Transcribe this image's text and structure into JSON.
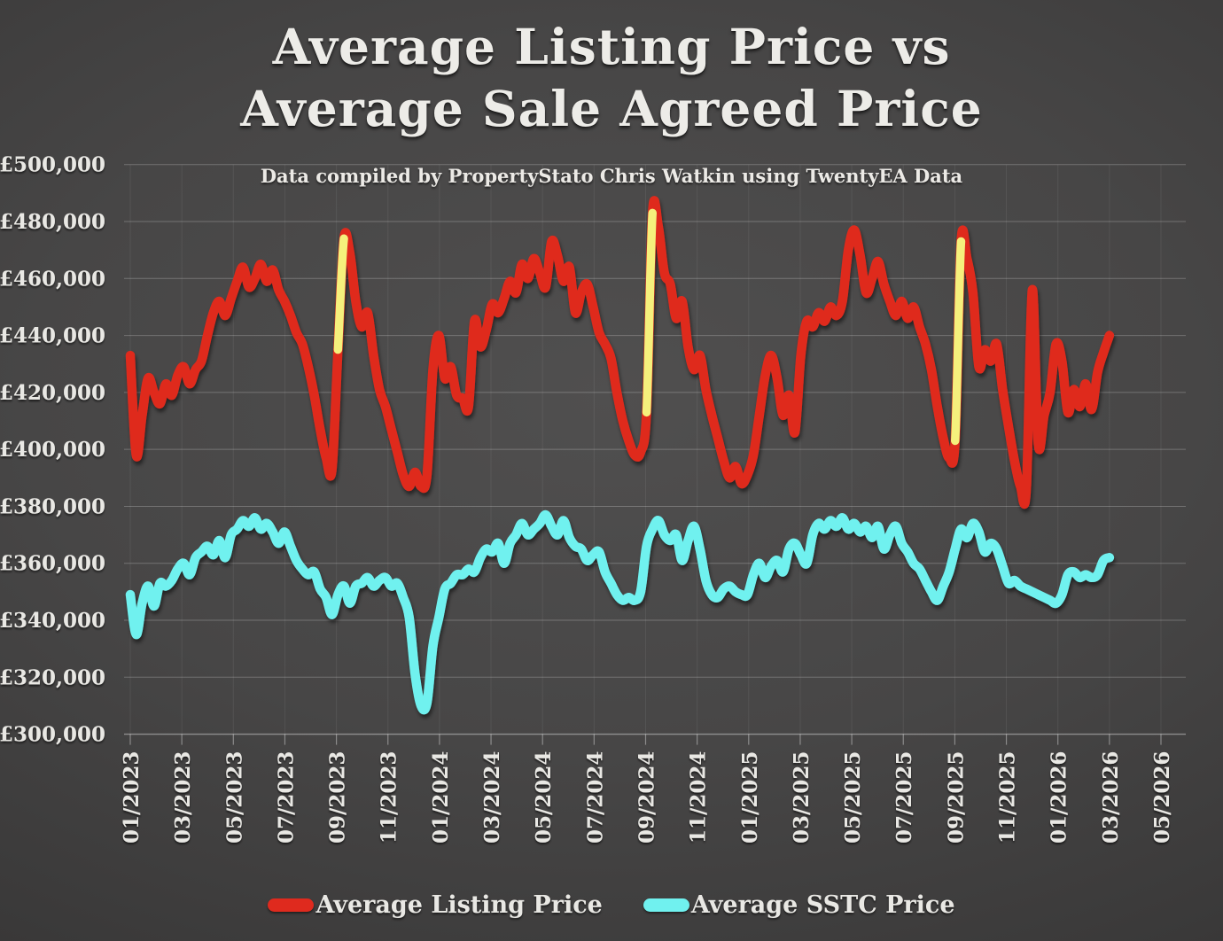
{
  "title": {
    "line1": "Average Listing Price vs",
    "line2": "Average Sale Agreed Price"
  },
  "subtitle": "Data compiled by PropertyStato Chris Watkin using TwentyEA Data",
  "legend": [
    {
      "label": "Average Listing Price",
      "color": "#df2a1e"
    },
    {
      "label": "Average SSTC Price",
      "color": "#70f1ef"
    }
  ],
  "colors": {
    "background_center": "#4f4e4e",
    "background_edge": "#2c2b2b",
    "text": "#e9e8e4",
    "gridline": "#6f6f6f",
    "listing_line": "#df2a1e",
    "sstc_line": "#70f1ef",
    "highlight_segment": "#f5f07c"
  },
  "chart_data": {
    "type": "line",
    "title": "Average Listing Price vs Average Sale Agreed Price",
    "subtitle": "Data compiled by PropertyStato Chris Watkin using TwentyEA Data",
    "x_frequency": "weekly",
    "x_start": "01/2023",
    "x_end": "03/2026",
    "x_tick_labels": [
      "01/2023",
      "03/2023",
      "05/2023",
      "07/2023",
      "09/2023",
      "11/2023",
      "01/2024",
      "03/2024",
      "05/2024",
      "07/2024",
      "09/2024",
      "11/2024",
      "01/2025",
      "03/2025",
      "05/2025",
      "07/2025",
      "09/2025",
      "11/2025",
      "01/2026",
      "03/2026",
      "05/2026"
    ],
    "y_tick_labels": [
      "£500,000",
      "£480,000",
      "£460,000",
      "£440,000",
      "£420,000",
      "£400,000",
      "£380,000",
      "£360,000",
      "£340,000",
      "£320,000",
      "£300,000"
    ],
    "ylim": [
      300000,
      500000
    ],
    "currency": "GBP",
    "grid": true,
    "legend_position": "bottom",
    "series": [
      {
        "name": "Average Listing Price",
        "color": "#df2a1e",
        "values": [
          433000,
          398000,
          412000,
          425000,
          420000,
          416000,
          423000,
          419000,
          426000,
          429000,
          423000,
          428000,
          431000,
          440000,
          448000,
          452000,
          447000,
          453000,
          459000,
          464000,
          457000,
          460000,
          465000,
          459000,
          463000,
          456000,
          452000,
          447000,
          441000,
          437000,
          429000,
          419000,
          407000,
          397000,
          393000,
          435000,
          474000,
          469000,
          452000,
          443000,
          448000,
          433000,
          421000,
          415000,
          407000,
          399000,
          391000,
          387000,
          392000,
          387000,
          391000,
          428000,
          440000,
          425000,
          429000,
          419000,
          418000,
          415000,
          445000,
          436000,
          442000,
          451000,
          448000,
          453000,
          459000,
          455000,
          465000,
          460000,
          467000,
          462000,
          457000,
          473000,
          468000,
          459000,
          464000,
          448000,
          455000,
          458000,
          450000,
          441000,
          437000,
          432000,
          420000,
          410000,
          403000,
          398000,
          399000,
          413000,
          483000,
          478000,
          462000,
          458000,
          446000,
          452000,
          436000,
          428000,
          433000,
          421000,
          412000,
          404000,
          396000,
          390000,
          394000,
          388000,
          391000,
          398000,
          412000,
          426000,
          433000,
          425000,
          412000,
          419000,
          406000,
          433000,
          445000,
          443000,
          448000,
          445000,
          450000,
          447000,
          452000,
          470000,
          477000,
          468000,
          455000,
          460000,
          466000,
          458000,
          452000,
          447000,
          452000,
          446000,
          450000,
          443000,
          437000,
          428000,
          415000,
          404000,
          397000,
          403000,
          473000,
          467000,
          455000,
          429000,
          435000,
          431000,
          437000,
          421000,
          408000,
          396000,
          387000,
          386000,
          456000,
          402000,
          412000,
          420000,
          437000,
          431000,
          413000,
          421000,
          415000,
          423000,
          414000,
          427000,
          434000,
          440000
        ]
      },
      {
        "name": "Average SSTC Price",
        "color": "#70f1ef",
        "values": [
          349000,
          335000,
          346000,
          352000,
          345000,
          353000,
          352000,
          354000,
          358000,
          360000,
          356000,
          362000,
          364000,
          366000,
          363000,
          368000,
          362000,
          370000,
          372000,
          375000,
          373000,
          376000,
          372000,
          374000,
          371000,
          367000,
          371000,
          366000,
          361000,
          358000,
          356000,
          357000,
          351000,
          348000,
          342000,
          349000,
          352000,
          346000,
          352000,
          353000,
          355000,
          352000,
          354000,
          355000,
          352000,
          353000,
          348000,
          341000,
          321000,
          310000,
          311000,
          331000,
          341000,
          351000,
          353000,
          356000,
          356000,
          358000,
          357000,
          362000,
          365000,
          364000,
          367000,
          360000,
          367000,
          370000,
          374000,
          370000,
          372000,
          374000,
          377000,
          373000,
          370000,
          375000,
          369000,
          366000,
          365000,
          361000,
          363000,
          364000,
          357000,
          353000,
          349000,
          347000,
          348000,
          347000,
          350000,
          366000,
          372000,
          375000,
          370000,
          368000,
          370000,
          361000,
          368000,
          373000,
          365000,
          354000,
          349000,
          348000,
          351000,
          352000,
          350000,
          349000,
          349000,
          356000,
          360000,
          355000,
          359000,
          361000,
          357000,
          365000,
          367000,
          363000,
          360000,
          370000,
          374000,
          372000,
          375000,
          373000,
          376000,
          372000,
          374000,
          371000,
          373000,
          369000,
          373000,
          365000,
          370000,
          373000,
          367000,
          364000,
          360000,
          358000,
          354000,
          350000,
          347000,
          352000,
          357000,
          365000,
          372000,
          369000,
          374000,
          371000,
          364000,
          367000,
          365000,
          359000,
          353000,
          354000,
          352000,
          351000,
          350000,
          349000,
          348000,
          347000,
          346000,
          349000,
          356000,
          357000,
          355000,
          356000,
          355000,
          356000,
          361000,
          362000
        ]
      }
    ],
    "highlight_segments": [
      {
        "series_index": 0,
        "from_point": 35,
        "to_point": 36,
        "approx_date": "09/2023",
        "color": "#f5f07c"
      },
      {
        "series_index": 0,
        "from_point": 87,
        "to_point": 88,
        "approx_date": "09/2024",
        "color": "#f5f07c"
      },
      {
        "series_index": 0,
        "from_point": 139,
        "to_point": 140,
        "approx_date": "09/2025",
        "color": "#f5f07c"
      }
    ]
  }
}
